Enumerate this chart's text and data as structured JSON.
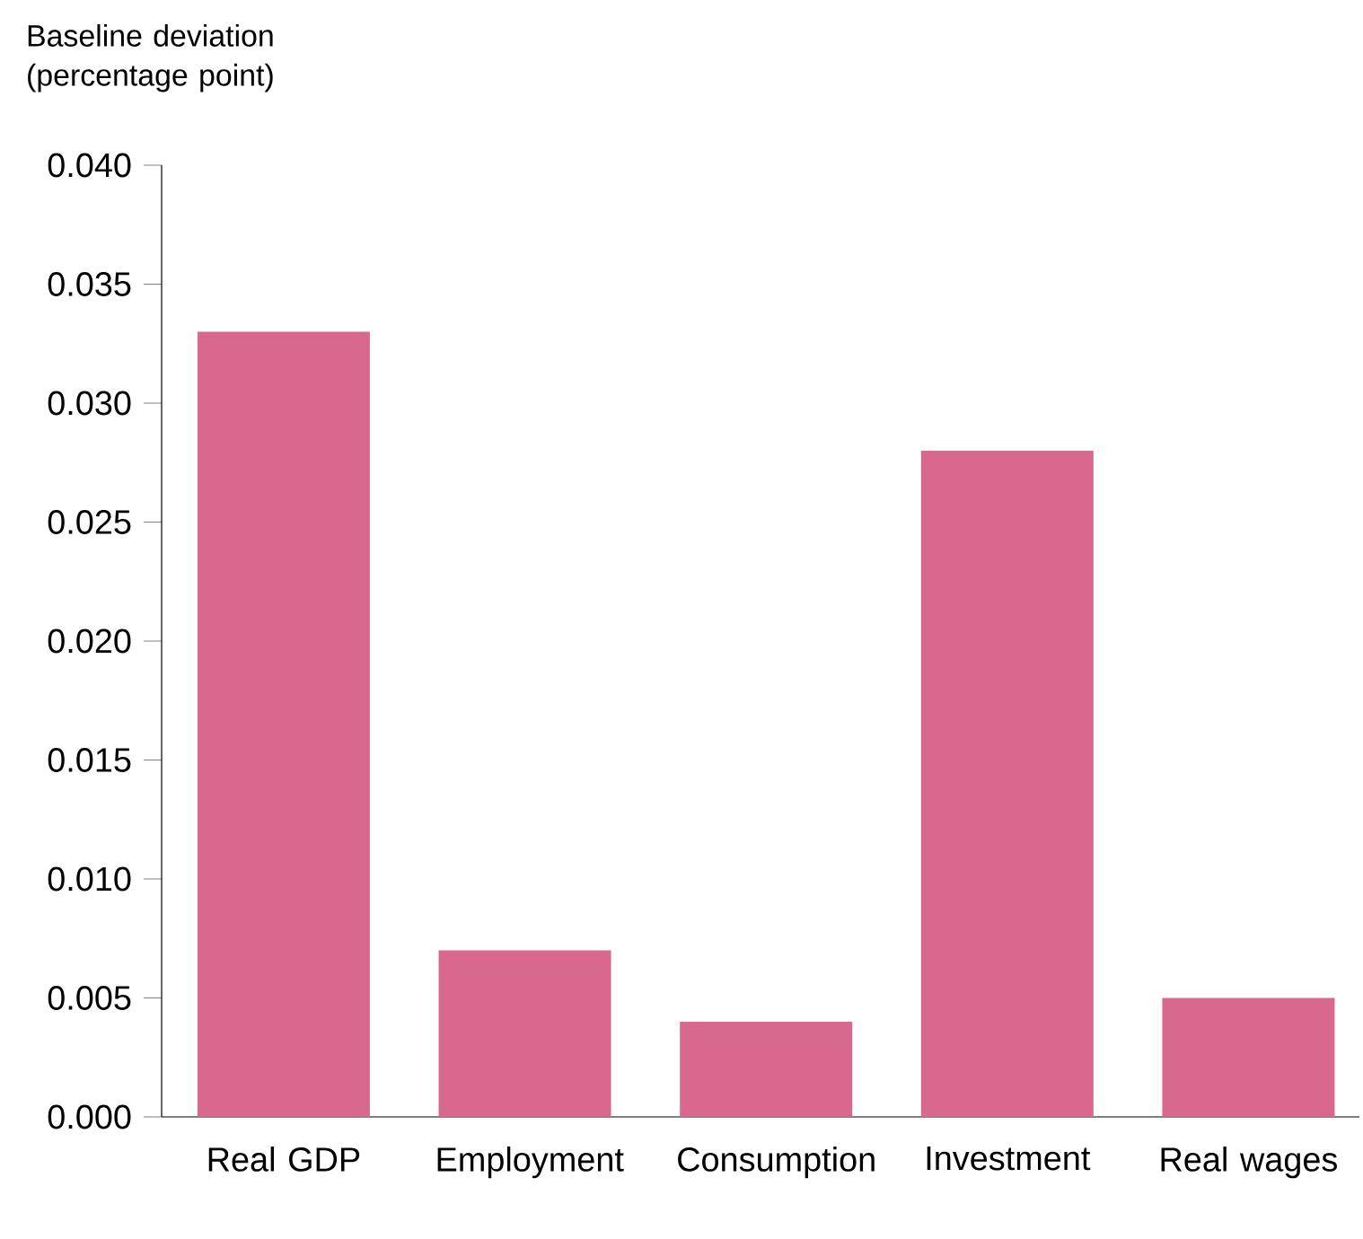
{
  "chart_data": {
    "type": "bar",
    "ylabel": "Baseline deviation (percentage point)",
    "categories": [
      "Real GDP",
      "Employment",
      "Consumption",
      "Investment",
      "Real wages"
    ],
    "values": [
      0.033,
      0.007,
      0.004,
      0.028,
      0.005
    ],
    "color": "#d9688f",
    "ylim": [
      0,
      0.04
    ],
    "yticks": [
      {
        "value": 0,
        "label": "0.000"
      },
      {
        "value": 0.005,
        "label": "0.005"
      },
      {
        "value": 0.01,
        "label": "0.010"
      },
      {
        "value": 0.015,
        "label": "0.015"
      },
      {
        "value": 0.02,
        "label": "0.020"
      },
      {
        "value": 0.025,
        "label": "0.025"
      },
      {
        "value": 0.03,
        "label": "0.030"
      },
      {
        "value": 0.035,
        "label": "0.035"
      },
      {
        "value": 0.04,
        "label": "0.040"
      }
    ]
  }
}
